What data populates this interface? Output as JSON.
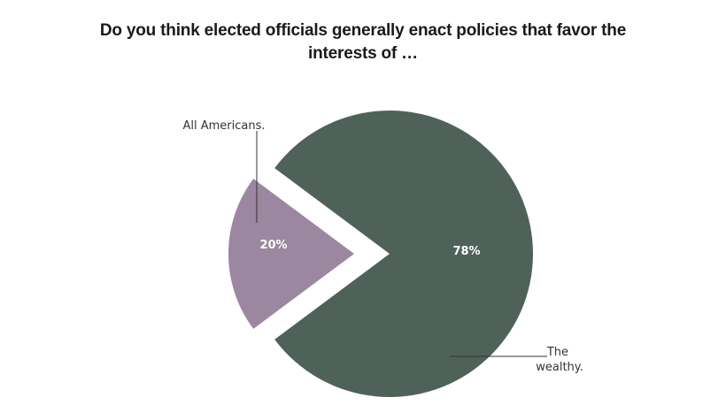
{
  "chart_data": {
    "type": "pie",
    "title": "Do you think elected officials generally enact policies that favor the interests of …",
    "slices": [
      {
        "name": "The wealthy.",
        "value": 78,
        "label": "78%",
        "color": "#4f625a"
      },
      {
        "name": "All Americans.",
        "value": 20,
        "label": "20%",
        "color": "#9b879f"
      }
    ],
    "legend": "callouts"
  }
}
